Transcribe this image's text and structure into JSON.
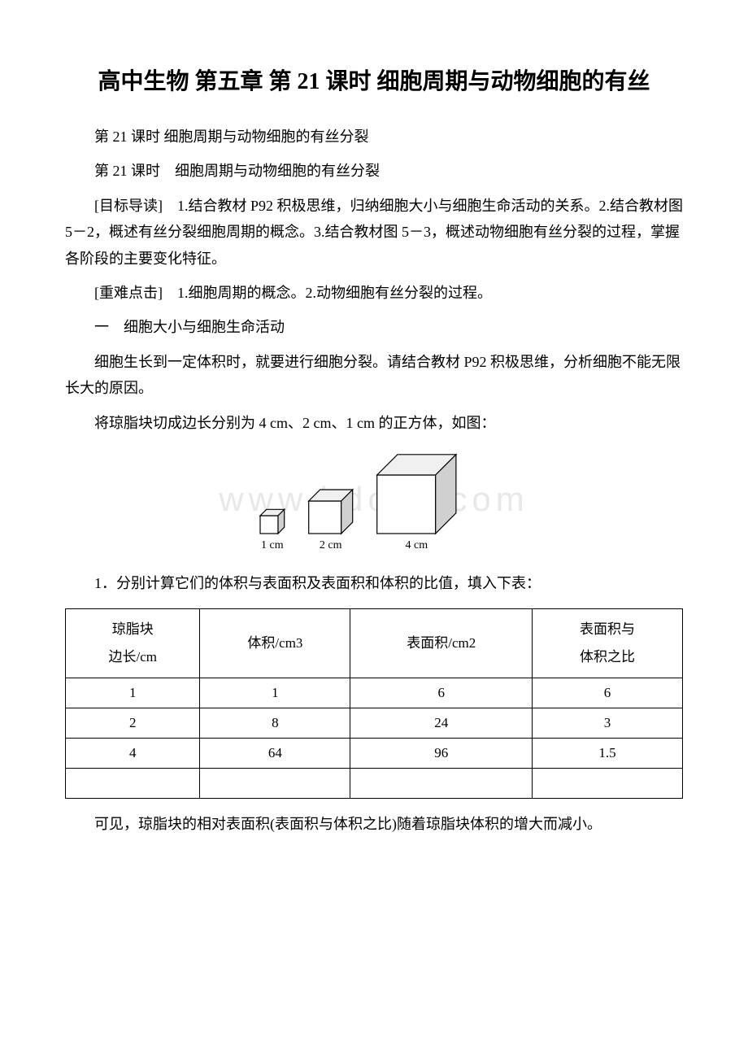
{
  "title": "高中生物 第五章 第 21 课时 细胞周期与动物细胞的有丝",
  "subtitle1": "第 21 课时 细胞周期与动物细胞的有丝分裂",
  "subtitle2": "第 21 课时　细胞周期与动物细胞的有丝分裂",
  "para_objective": "[目标导读]　1.结合教材 P92 积极思维，归纳细胞大小与细胞生命活动的关系。2.结合教材图 5－2，概述有丝分裂细胞周期的概念。3.结合教材图 5－3，概述动物细胞有丝分裂的过程，掌握各阶段的主要变化特征。",
  "para_keypoint": "[重难点击]　1.细胞周期的概念。2.动物细胞有丝分裂的过程。",
  "section1_heading": "一　细胞大小与细胞生命活动",
  "para_intro": "细胞生长到一定体积时，就要进行细胞分裂。请结合教材 P92 积极思维，分析细胞不能无限长大的原因。",
  "para_cubes": "将琼脂块切成边长分别为 4 cm、2 cm、1 cm 的正方体，如图：",
  "watermark_text": "www.bdocx.com",
  "cubes": {
    "labels": [
      "1 cm",
      "2 cm",
      "4 cm"
    ],
    "sizes": [
      22,
      40,
      72
    ],
    "stroke": "#000000",
    "fill_side": "#d0d0d0",
    "fill_top": "#f0f0f0",
    "fill_front": "#ffffff"
  },
  "para_q1": "1．分别计算它们的体积与表面积及表面积和体积的比值，填入下表：",
  "table": {
    "headers": [
      "琼脂块\n边长/cm",
      "体积/cm3",
      "表面积/cm2",
      "表面积与\n体积之比"
    ],
    "rows": [
      [
        "1",
        "1",
        "6",
        "6"
      ],
      [
        "2",
        "8",
        "24",
        "3"
      ],
      [
        "4",
        "64",
        "96",
        "1.5"
      ],
      [
        "",
        "",
        "",
        ""
      ]
    ]
  },
  "para_conclusion": "可见，琼脂块的相对表面积(表面积与体积之比)随着琼脂块体积的增大而减小。"
}
